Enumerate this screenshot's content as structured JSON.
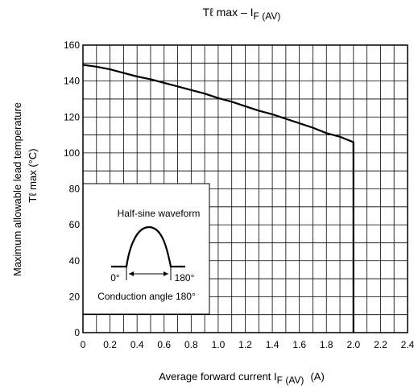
{
  "chart_data": {
    "type": "line",
    "title": "Tℓ max – I",
    "title_sub": "F (AV)",
    "xlabel": "Average forward current   I",
    "xlabel_sub": "F (AV)",
    "xlabel_unit": "(A)",
    "ylabel_line1": "Maximum allowable lead temperature",
    "ylabel_line2": "Tℓ max    (°C)",
    "xlim": [
      0,
      2.4
    ],
    "ylim": [
      0,
      160
    ],
    "x_ticks": [
      "0",
      "0.2",
      "0.4",
      "0.6",
      "0.8",
      "1.0",
      "1.2",
      "1.4",
      "1.6",
      "1.8",
      "2.0",
      "2.2",
      "2.4"
    ],
    "y_ticks": [
      "0",
      "20",
      "40",
      "60",
      "80",
      "100",
      "120",
      "140",
      "160"
    ],
    "x_tick_values": [
      0,
      0.2,
      0.4,
      0.6,
      0.8,
      1.0,
      1.2,
      1.4,
      1.6,
      1.8,
      2.0,
      2.2,
      2.4
    ],
    "y_tick_values": [
      0,
      20,
      40,
      60,
      80,
      100,
      120,
      140,
      160
    ],
    "grid": true,
    "series": [
      {
        "x": [
          0,
          0.1,
          0.2,
          0.3,
          0.4,
          0.5,
          0.6,
          0.7,
          0.8,
          0.9,
          1.0,
          1.1,
          1.2,
          1.3,
          1.4,
          1.5,
          1.6,
          1.7,
          1.8,
          1.9,
          2.0,
          2.0
        ],
        "y": [
          149,
          148,
          146.5,
          144.5,
          142.5,
          141,
          139,
          137,
          135,
          133,
          130.5,
          128.5,
          126,
          123.5,
          121.5,
          119,
          116.5,
          114,
          111,
          109,
          106,
          0
        ]
      }
    ],
    "inset": {
      "title": "Half-sine waveform",
      "angle_start": "0°",
      "angle_end": "180°",
      "caption": "Conduction angle 180°"
    }
  },
  "colors": {
    "line": "#000000",
    "grid": "#000000",
    "background": "#ffffff"
  }
}
